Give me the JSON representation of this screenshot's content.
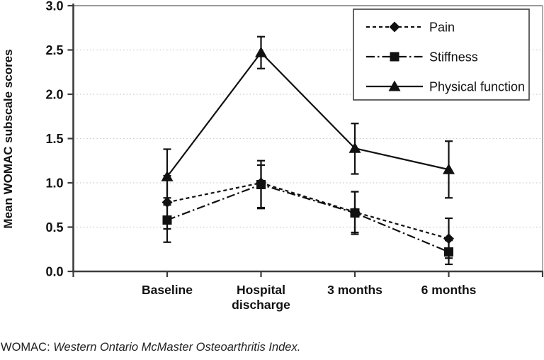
{
  "figure": {
    "caption_prefix": "WOMAC: ",
    "caption_italic": "Western Ontario McMaster Osteoarthritis Index."
  },
  "chart_data": {
    "type": "line",
    "title": "",
    "xlabel": "",
    "ylabel": "Mean WOMAC subscale scores",
    "categories": [
      "Baseline",
      "Hospital discharge",
      "3 months",
      "6 months"
    ],
    "category_labels_wrapped": [
      [
        "Baseline"
      ],
      [
        "Hospital",
        "discharge"
      ],
      [
        "3 months"
      ],
      [
        "6 months"
      ]
    ],
    "ylim": [
      0,
      3.0
    ],
    "ytick_step": 0.5,
    "ytick_labels": [
      "0.0",
      "0.5",
      "1.0",
      "1.5",
      "2.0",
      "2.5",
      "3.0"
    ],
    "grid": "horizontal dotted gridlines at 0.5 intervals",
    "legend_position": "top-right inside plot",
    "error_bars": true,
    "series": [
      {
        "name": "Pain",
        "marker": "diamond",
        "line_style": "dashed",
        "values": [
          0.78,
          1.0,
          0.67,
          0.37
        ],
        "error_low": [
          0.48,
          0.72,
          0.42,
          0.15
        ],
        "error_high": [
          1.08,
          1.25,
          0.9,
          0.6
        ]
      },
      {
        "name": "Stiffness",
        "marker": "square",
        "line_style": "dash-dot",
        "values": [
          0.58,
          0.98,
          0.66,
          0.22
        ],
        "error_low": [
          0.33,
          0.71,
          0.44,
          0.08
        ],
        "error_high": [
          0.83,
          1.2,
          0.9,
          0.35
        ]
      },
      {
        "name": "Physical function",
        "marker": "triangle",
        "line_style": "solid",
        "values": [
          1.07,
          2.47,
          1.39,
          1.15
        ],
        "error_low": [
          0.75,
          2.29,
          1.1,
          0.83
        ],
        "error_high": [
          1.38,
          2.65,
          1.67,
          1.47
        ]
      }
    ],
    "colors": {
      "series": "#111111",
      "grid": "#cbcbcb",
      "axis": "#3d3d3d",
      "plot_border": "#9a9a9a",
      "background": "#ffffff"
    }
  }
}
